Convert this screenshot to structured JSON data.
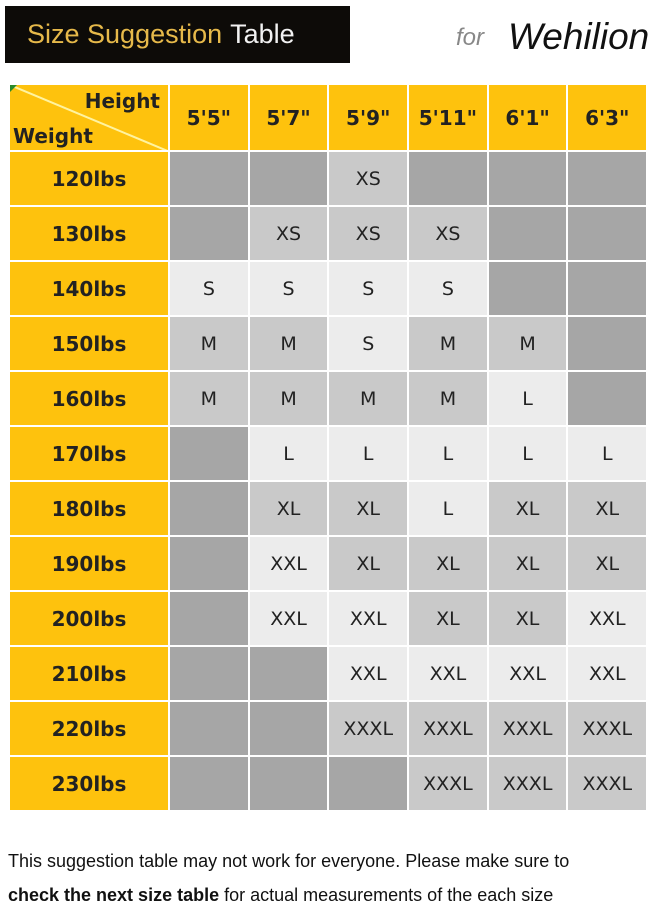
{
  "header": {
    "title_part1": "Size Suggestion",
    "title_part2": "Table",
    "for_label": "for",
    "brand": "Wehilion"
  },
  "table": {
    "corner_height_label": "Height",
    "corner_weight_label": "Weight",
    "heights": [
      "5'5\"",
      "5'7\"",
      "5'9\"",
      "5'11\"",
      "6'1\"",
      "6'3\""
    ],
    "rows": [
      {
        "weight": "120lbs",
        "sizes": [
          "",
          "",
          "XS",
          "",
          "",
          ""
        ]
      },
      {
        "weight": "130lbs",
        "sizes": [
          "",
          "XS",
          "XS",
          "XS",
          "",
          ""
        ]
      },
      {
        "weight": "140lbs",
        "sizes": [
          "S",
          "S",
          "S",
          "S",
          "",
          ""
        ]
      },
      {
        "weight": "150lbs",
        "sizes": [
          "M",
          "M",
          "S",
          "M",
          "M",
          ""
        ]
      },
      {
        "weight": "160lbs",
        "sizes": [
          "M",
          "M",
          "M",
          "M",
          "L",
          ""
        ]
      },
      {
        "weight": "170lbs",
        "sizes": [
          "",
          "L",
          "L",
          "L",
          "L",
          "L"
        ]
      },
      {
        "weight": "180lbs",
        "sizes": [
          "",
          "XL",
          "XL",
          "L",
          "XL",
          "XL"
        ]
      },
      {
        "weight": "190lbs",
        "sizes": [
          "",
          "XXL",
          "XL",
          "XL",
          "XL",
          "XL"
        ]
      },
      {
        "weight": "200lbs",
        "sizes": [
          "",
          "XXL",
          "XXL",
          "XL",
          "XL",
          "XXL"
        ]
      },
      {
        "weight": "210lbs",
        "sizes": [
          "",
          "",
          "XXL",
          "XXL",
          "XXL",
          "XXL"
        ]
      },
      {
        "weight": "220lbs",
        "sizes": [
          "",
          "",
          "XXXL",
          "XXXL",
          "XXXL",
          "XXXL"
        ]
      },
      {
        "weight": "230lbs",
        "sizes": [
          "",
          "",
          "",
          "XXXL",
          "XXXL",
          "XXXL"
        ]
      }
    ]
  },
  "colors": {
    "header_bg": "#fec20d",
    "empty": "#a6a6a6",
    "XS": "#c9c9c9",
    "S": "#ececec",
    "M": "#c9c9c9",
    "L": "#ececec",
    "XL": "#c9c9c9",
    "XXL": "#ececec",
    "XXXL": "#c9c9c9"
  },
  "footer": {
    "line1": "This suggestion table may not work for everyone. Please make sure to",
    "line2_bold": "check the next size table",
    "line2_rest": " for actual measurements of the each size"
  }
}
